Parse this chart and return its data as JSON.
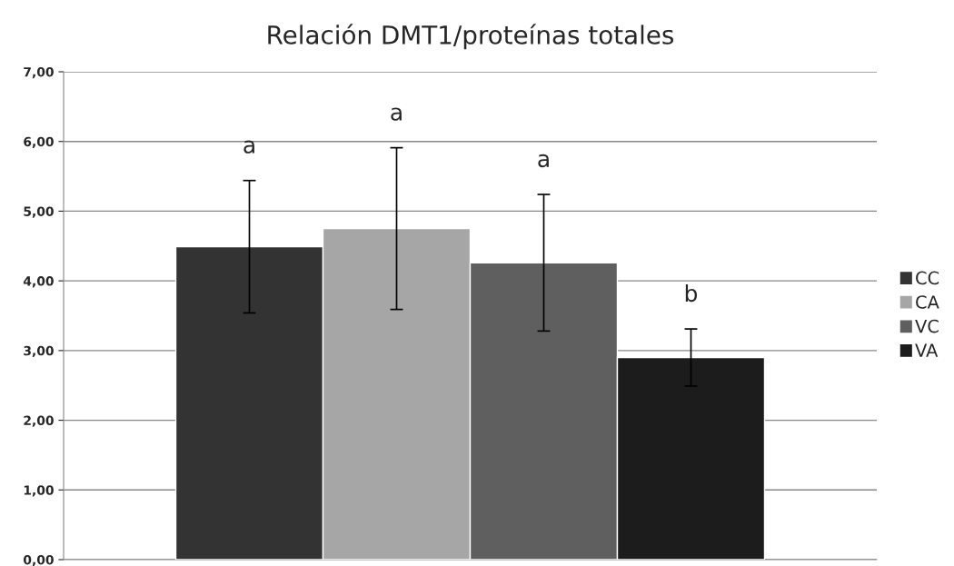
{
  "chart_data": {
    "type": "bar",
    "title": "Relación DMT1/proteínas totales",
    "categories": [
      null
    ],
    "series": [
      {
        "name": "CC",
        "color": "#333333",
        "values": [
          4.49
        ],
        "errors": [
          0.95
        ]
      },
      {
        "name": "CA",
        "color": "#a6a6a6",
        "values": [
          4.75
        ],
        "errors": [
          1.16
        ]
      },
      {
        "name": "VC",
        "color": "#5f5f5f",
        "values": [
          4.26
        ],
        "errors": [
          0.98
        ]
      },
      {
        "name": "VA",
        "color": "#1c1c1c",
        "values": [
          2.9
        ],
        "errors": [
          0.41
        ]
      }
    ],
    "annotations": [
      "a",
      "a",
      "a",
      "b"
    ],
    "ylim": [
      0,
      7
    ],
    "yticks": [
      {
        "value": 0,
        "label": "0,00"
      },
      {
        "value": 1,
        "label": "1,00"
      },
      {
        "value": 2,
        "label": "2,00"
      },
      {
        "value": 3,
        "label": "3,00"
      },
      {
        "value": 4,
        "label": "4,00"
      },
      {
        "value": 5,
        "label": "5,00"
      },
      {
        "value": 6,
        "label": "6,00"
      },
      {
        "value": 7,
        "label": "7,00"
      }
    ],
    "grid": "y",
    "legend": "right",
    "tick_labels": "y"
  }
}
